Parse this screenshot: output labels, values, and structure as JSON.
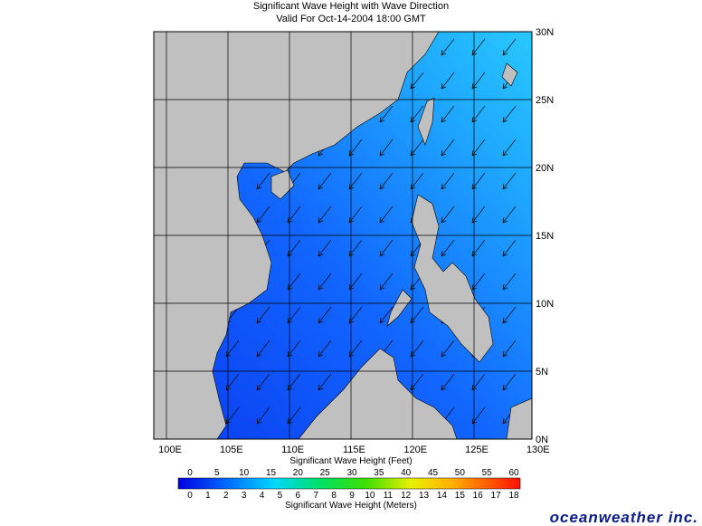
{
  "header": {
    "title": "Significant Wave Height with Wave Direction",
    "subtitle": "Valid For Oct-14-2004 18:00 GMT"
  },
  "map": {
    "lon_labels": [
      "100E",
      "105E",
      "110E",
      "115E",
      "120E",
      "125E",
      "130E"
    ],
    "lat_labels": [
      "30N",
      "25N",
      "20N",
      "15N",
      "10N",
      "5N",
      "0N"
    ]
  },
  "legend": {
    "feet_title": "Significant Wave Height (Feet)",
    "feet_ticks": [
      "0",
      "5",
      "10",
      "15",
      "20",
      "25",
      "30",
      "35",
      "40",
      "45",
      "50",
      "55",
      "60"
    ],
    "meter_ticks": [
      "0",
      "1",
      "2",
      "3",
      "4",
      "5",
      "6",
      "7",
      "8",
      "9",
      "10",
      "11",
      "12",
      "13",
      "14",
      "15",
      "16",
      "17",
      "18"
    ],
    "meters_title": "Significant Wave Height (Meters)"
  },
  "logo": "oceanweather inc."
}
